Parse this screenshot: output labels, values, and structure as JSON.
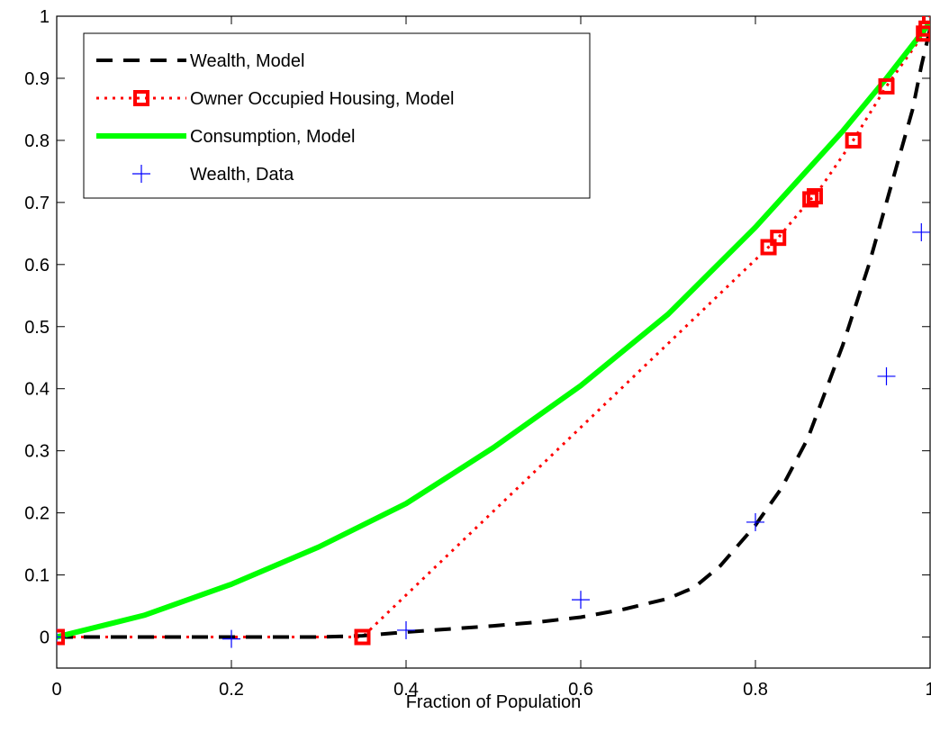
{
  "chart_data": {
    "type": "line",
    "title": "",
    "xlabel": "Fraction of Population",
    "ylabel": "",
    "xlim": [
      0,
      1
    ],
    "ylim": [
      -0.05,
      1
    ],
    "xticks": [
      0,
      0.2,
      0.4,
      0.6,
      0.8,
      1
    ],
    "xtick_labels": [
      "0",
      "0.2",
      "0.4",
      "0.6",
      "0.8",
      "1"
    ],
    "yticks": [
      0,
      0.1,
      0.2,
      0.3,
      0.4,
      0.5,
      0.6,
      0.7,
      0.8,
      0.9,
      1
    ],
    "ytick_labels": [
      "0",
      "0.1",
      "0.2",
      "0.3",
      "0.4",
      "0.5",
      "0.6",
      "0.7",
      "0.8",
      "0.9",
      "1"
    ],
    "grid": false,
    "legend_position": "top-left",
    "series": [
      {
        "name": "Wealth, Model",
        "style": "dashed",
        "color": "#000000",
        "x": [
          0,
          0.1,
          0.2,
          0.3,
          0.35,
          0.4,
          0.45,
          0.5,
          0.55,
          0.6,
          0.65,
          0.7,
          0.73,
          0.76,
          0.8,
          0.83,
          0.86,
          0.9,
          0.93,
          0.95,
          0.97,
          0.98,
          0.99,
          1.0
        ],
        "y": [
          0,
          0,
          0,
          0,
          0.002,
          0.008,
          0.013,
          0.018,
          0.024,
          0.032,
          0.045,
          0.062,
          0.08,
          0.115,
          0.18,
          0.24,
          0.32,
          0.47,
          0.6,
          0.7,
          0.8,
          0.85,
          0.92,
          0.98
        ]
      },
      {
        "name": "Owner Occupied Housing, Model",
        "style": "dotted",
        "color": "#ff0000",
        "marker": "square",
        "x": [
          0,
          0.35,
          0.815,
          0.826,
          0.863,
          0.868,
          0.912,
          0.95,
          0.993,
          0.996,
          1.0
        ],
        "y": [
          0,
          0,
          0.628,
          0.643,
          0.705,
          0.71,
          0.8,
          0.887,
          0.972,
          0.98,
          1.0
        ]
      },
      {
        "name": "Consumption, Model",
        "style": "solid",
        "color": "#00ff00",
        "x": [
          0,
          0.1,
          0.2,
          0.3,
          0.4,
          0.5,
          0.6,
          0.7,
          0.8,
          0.9,
          0.95,
          1.0
        ],
        "y": [
          0,
          0.035,
          0.085,
          0.145,
          0.215,
          0.305,
          0.405,
          0.52,
          0.66,
          0.815,
          0.9,
          0.99
        ]
      },
      {
        "name": "Wealth, Data",
        "style": "none",
        "color": "#0000ff",
        "marker": "plus",
        "x": [
          0,
          0.2,
          0.4,
          0.6,
          0.8,
          0.95,
          0.99
        ],
        "y": [
          0,
          -0.003,
          0.011,
          0.06,
          0.185,
          0.42,
          0.652
        ]
      }
    ]
  }
}
